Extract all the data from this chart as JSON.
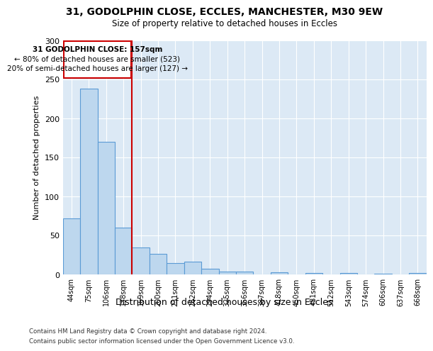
{
  "title_line1": "31, GODOLPHIN CLOSE, ECCLES, MANCHESTER, M30 9EW",
  "title_line2": "Size of property relative to detached houses in Eccles",
  "xlabel": "Distribution of detached houses by size in Eccles",
  "ylabel": "Number of detached properties",
  "categories": [
    "44sqm",
    "75sqm",
    "106sqm",
    "138sqm",
    "169sqm",
    "200sqm",
    "231sqm",
    "262sqm",
    "294sqm",
    "325sqm",
    "356sqm",
    "387sqm",
    "418sqm",
    "450sqm",
    "481sqm",
    "512sqm",
    "543sqm",
    "574sqm",
    "606sqm",
    "637sqm",
    "668sqm"
  ],
  "values": [
    72,
    238,
    170,
    60,
    35,
    26,
    15,
    16,
    7,
    4,
    4,
    0,
    3,
    0,
    2,
    0,
    2,
    0,
    1,
    0,
    2
  ],
  "bar_color": "#bdd7ee",
  "bar_edge_color": "#5b9bd5",
  "annotation_text_line1": "31 GODOLPHIN CLOSE: 157sqm",
  "annotation_text_line2": "← 80% of detached houses are smaller (523)",
  "annotation_text_line3": "20% of semi-detached houses are larger (127) →",
  "annotation_box_color": "#ffffff",
  "annotation_box_edge_color": "#cc0000",
  "ylim": [
    0,
    300
  ],
  "footnote1": "Contains HM Land Registry data © Crown copyright and database right 2024.",
  "footnote2": "Contains public sector information licensed under the Open Government Licence v3.0.",
  "bg_color": "#dce9f5"
}
